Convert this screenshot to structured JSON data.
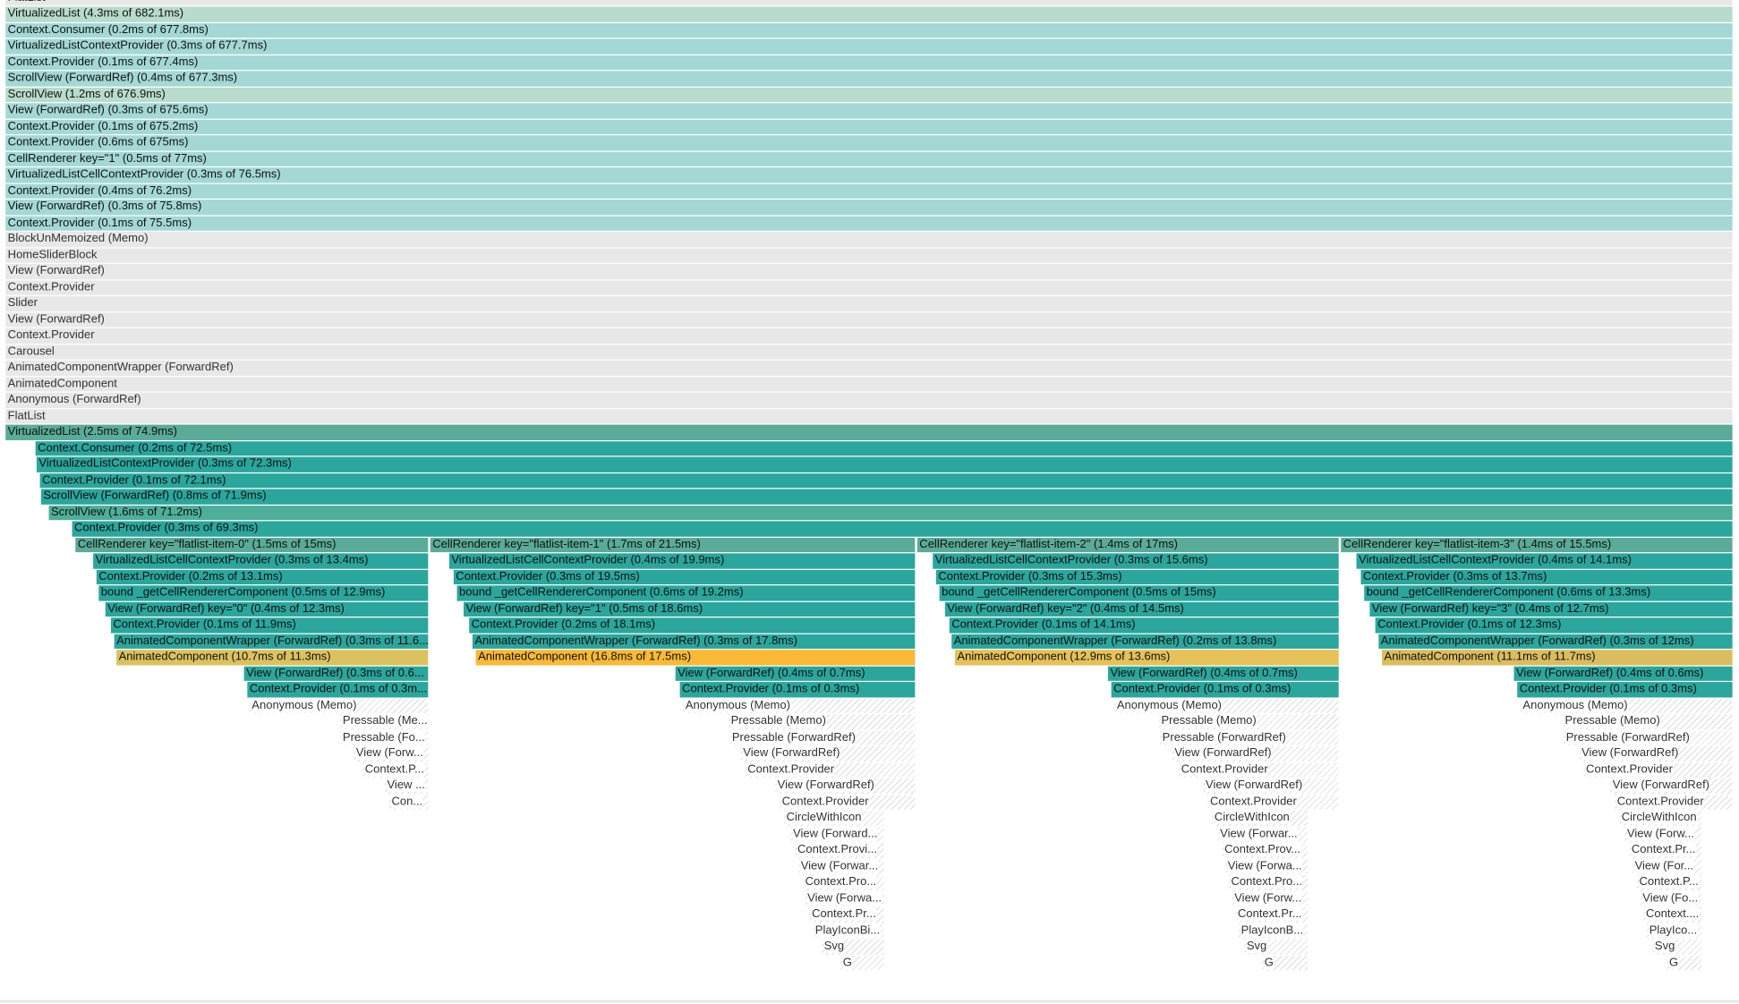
{
  "frames": [
    "FlatList",
    "VirtualizedList (4.3ms of 682.1ms)",
    "Context.Consumer (0.2ms of 677.8ms)",
    "VirtualizedListContextProvider (0.3ms of 677.7ms)",
    "Context.Provider (0.1ms of 677.4ms)",
    "ScrollView (ForwardRef) (0.4ms of 677.3ms)",
    "ScrollView (1.2ms of 676.9ms)",
    "View (ForwardRef) (0.3ms of 675.6ms)",
    "Context.Provider (0.1ms of 675.2ms)",
    "Context.Provider (0.6ms of 675ms)",
    "CellRenderer key=\"1\" (0.5ms of 77ms)",
    "VirtualizedListCellContextProvider (0.3ms of 76.5ms)",
    "Context.Provider (0.4ms of 76.2ms)",
    "View (ForwardRef) (0.3ms of 75.8ms)",
    "Context.Provider (0.1ms of 75.5ms)",
    "BlockUnMemoized (Memo)",
    "HomeSliderBlock",
    "View (ForwardRef)",
    "Context.Provider",
    "Slider",
    "View (ForwardRef)",
    "Context.Provider",
    "Carousel",
    "AnimatedComponentWrapper (ForwardRef)",
    "AnimatedComponent",
    "Anonymous (ForwardRef)",
    "FlatList",
    "VirtualizedList (2.5ms of 74.9ms)",
    "Context.Consumer (0.2ms of 72.5ms)",
    "VirtualizedListContextProvider (0.3ms of 72.3ms)",
    "Context.Provider (0.1ms of 72.1ms)",
    "ScrollView (ForwardRef) (0.8ms of 71.9ms)",
    "ScrollView (1.6ms of 71.2ms)",
    "Context.Provider (0.3ms of 69.3ms)"
  ],
  "columns": [
    {
      "frames": [
        "CellRenderer key=\"flatlist-item-0\" (1.5ms of 15ms)",
        "VirtualizedListCellContextProvider (0.3ms of 13.4ms)",
        "Context.Provider (0.2ms of 13.1ms)",
        "bound _getCellRendererComponent (0.5ms of 12.9ms)",
        "View (ForwardRef) key=\"0\" (0.4ms of 12.3ms)",
        "Context.Provider (0.1ms of 11.9ms)",
        "AnimatedComponentWrapper (ForwardRef) (0.3ms of 11.6...",
        "AnimatedComponent (10.7ms of 11.3ms)",
        "View (ForwardRef) (0.3ms of 0.6...",
        "Context.Provider (0.1ms of 0.3m...",
        "Anonymous (Memo)",
        "Pressable (Me...",
        "Pressable (Fo...",
        "View (Forw...",
        "Context.P...",
        "View ...",
        "Con..."
      ]
    },
    {
      "frames": [
        "CellRenderer key=\"flatlist-item-1\" (1.7ms of 21.5ms)",
        "VirtualizedListCellContextProvider (0.4ms of 19.9ms)",
        "Context.Provider (0.3ms of 19.5ms)",
        "bound _getCellRendererComponent (0.6ms of 19.2ms)",
        "View (ForwardRef) key=\"1\" (0.5ms of 18.6ms)",
        "Context.Provider (0.2ms of 18.1ms)",
        "AnimatedComponentWrapper (ForwardRef) (0.3ms of 17.8ms)",
        "AnimatedComponent (16.8ms of 17.5ms)",
        "View (ForwardRef) (0.4ms of 0.7ms)",
        "Context.Provider (0.1ms of 0.3ms)",
        "Anonymous (Memo)",
        "Pressable (Memo)",
        "Pressable (ForwardRef)",
        "View (ForwardRef)",
        "Context.Provider",
        "View (ForwardRef)",
        "Context.Provider",
        "CircleWithIcon",
        "View (Forward...",
        "Context.Provi...",
        "View (Forwar...",
        "Context.Pro...",
        "View (Forwa...",
        "Context.Pr...",
        "PlayIconBi...",
        "Svg",
        "G"
      ]
    },
    {
      "frames": [
        "CellRenderer key=\"flatlist-item-2\" (1.4ms of 17ms)",
        "VirtualizedListCellContextProvider (0.3ms of 15.6ms)",
        "Context.Provider (0.3ms of 15.3ms)",
        "bound _getCellRendererComponent (0.5ms of 15ms)",
        "View (ForwardRef) key=\"2\" (0.4ms of 14.5ms)",
        "Context.Provider (0.1ms of 14.1ms)",
        "AnimatedComponentWrapper (ForwardRef) (0.2ms of 13.8ms)",
        "AnimatedComponent (12.9ms of 13.6ms)",
        "View (ForwardRef) (0.4ms of 0.7ms)",
        "Context.Provider (0.1ms of 0.3ms)",
        "Anonymous (Memo)",
        "Pressable (Memo)",
        "Pressable (ForwardRef)",
        "View (ForwardRef)",
        "Context.Provider",
        "View (ForwardRef)",
        "Context.Provider",
        "CircleWithIcon",
        "View (Forwar...",
        "Context.Prov...",
        "View (Forwa...",
        "Context.Pro...",
        "View (Forw...",
        "Context.Pr...",
        "PlayIconB...",
        "Svg",
        "G"
      ]
    },
    {
      "frames": [
        "CellRenderer key=\"flatlist-item-3\" (1.4ms of 15.5ms)",
        "VirtualizedListCellContextProvider (0.4ms of 14.1ms)",
        "Context.Provider (0.3ms of 13.7ms)",
        "bound _getCellRendererComponent (0.6ms of 13.3ms)",
        "View (ForwardRef) key=\"3\" (0.4ms of 12.7ms)",
        "Context.Provider (0.1ms of 12.3ms)",
        "AnimatedComponentWrapper (ForwardRef) (0.3ms of 12ms)",
        "AnimatedComponent (11.1ms of 11.7ms)",
        "View (ForwardRef) (0.4ms of 0.6ms)",
        "Context.Provider (0.1ms of 0.3ms)",
        "Anonymous (Memo)",
        "Pressable (Memo)",
        "Pressable (ForwardRef)",
        "View (ForwardRef)",
        "Context.Provider",
        "View (ForwardRef)",
        "Context.Provider",
        "CircleWithIcon",
        "View (Forw...",
        "Context.Pr...",
        "View (For...",
        "Context.P...",
        "View (Fo...",
        "Context....",
        "PlayIco...",
        "Svg",
        "G"
      ]
    }
  ]
}
